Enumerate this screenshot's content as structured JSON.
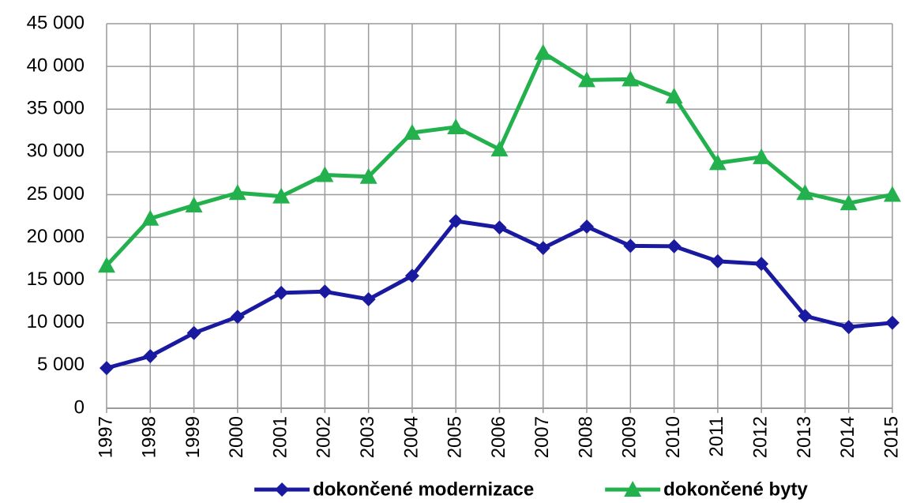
{
  "chart_data": {
    "type": "line",
    "categories": [
      "1997",
      "1998",
      "1999",
      "2000",
      "2001",
      "2002",
      "2003",
      "2004",
      "2005",
      "2006",
      "2007",
      "2008",
      "2009",
      "2010",
      "2011",
      "2012",
      "2013",
      "2014",
      "2015"
    ],
    "series": [
      {
        "name": "dokončené modernizace",
        "color": "#1a1aa0",
        "marker": "diamond",
        "values": [
          4700,
          6100,
          8800,
          10700,
          13500,
          13650,
          12750,
          15500,
          21900,
          21150,
          18750,
          21250,
          19000,
          18950,
          17200,
          16900,
          10800,
          9500,
          10000
        ]
      },
      {
        "name": "dokončené byty",
        "color": "#22b14c",
        "marker": "triangle",
        "values": [
          16700,
          22200,
          23750,
          25200,
          24800,
          27300,
          27100,
          32250,
          32900,
          30300,
          41600,
          38400,
          38500,
          36500,
          28700,
          29400,
          25200,
          24000,
          25000
        ]
      }
    ],
    "ylim": [
      0,
      45000
    ],
    "yticks": [
      0,
      {
        "value": 5000,
        "label": "5 000"
      },
      {
        "value": 10000,
        "label": "10 000"
      },
      {
        "value": 15000,
        "label": "15 000"
      },
      {
        "value": 20000,
        "label": "20 000"
      },
      {
        "value": 25000,
        "label": "25 000"
      },
      {
        "value": 30000,
        "label": "30 000"
      },
      {
        "value": 35000,
        "label": "35 000"
      },
      {
        "value": 40000,
        "label": "40 000"
      },
      {
        "value": 45000,
        "label": "45 000"
      }
    ],
    "grid": true
  }
}
